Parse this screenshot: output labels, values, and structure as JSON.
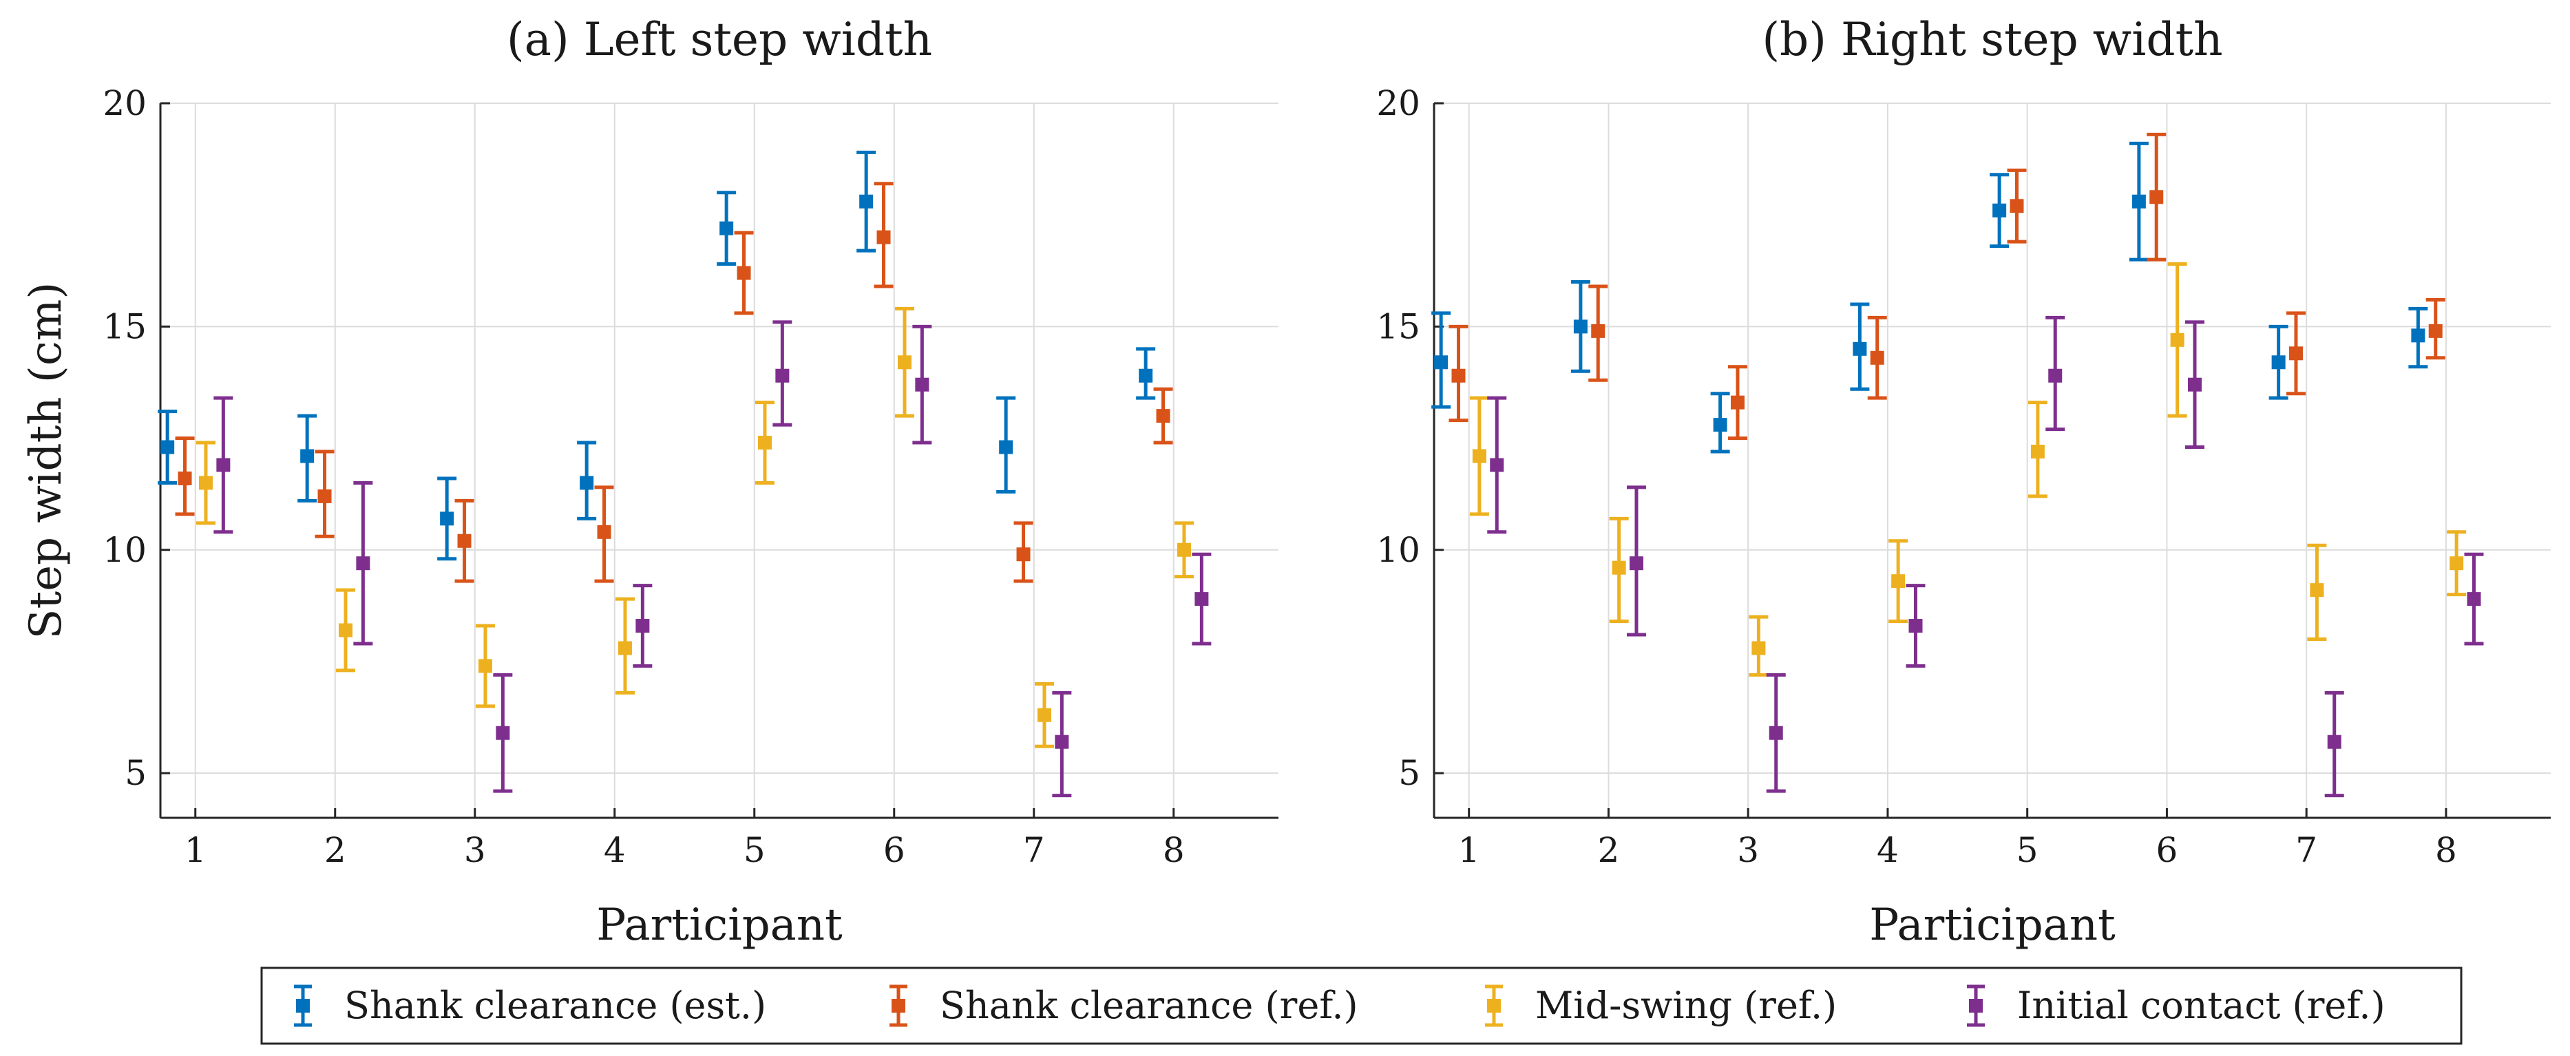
{
  "chart_data": [
    {
      "type": "errorbar",
      "title": "(a) Left step width",
      "xlabel": "Participant",
      "ylabel": "Step width (cm)",
      "xlim": [
        0.75,
        8.75
      ],
      "ylim": [
        4,
        20
      ],
      "xticks": [
        1,
        2,
        3,
        4,
        5,
        6,
        7,
        8
      ],
      "yticks": [
        5,
        10,
        15,
        20
      ],
      "grid": true,
      "series": [
        {
          "name": "Shank clearance (est.)",
          "color": "#0072BD",
          "mean": [
            12.3,
            12.1,
            10.7,
            11.5,
            17.2,
            17.8,
            12.3,
            13.9
          ],
          "low": [
            11.5,
            11.1,
            9.8,
            10.7,
            16.4,
            16.7,
            11.3,
            13.4
          ],
          "high": [
            13.1,
            13.0,
            11.6,
            12.4,
            18.0,
            18.9,
            13.4,
            14.5
          ]
        },
        {
          "name": "Shank clearance (ref.)",
          "color": "#D95319",
          "mean": [
            11.6,
            11.2,
            10.2,
            10.4,
            16.2,
            17.0,
            9.9,
            13.0
          ],
          "low": [
            10.8,
            10.3,
            9.3,
            9.3,
            15.3,
            15.9,
            9.3,
            12.4
          ],
          "high": [
            12.5,
            12.2,
            11.1,
            11.4,
            17.1,
            18.2,
            10.6,
            13.6
          ]
        },
        {
          "name": "Mid-swing (ref.)",
          "color": "#EDB120",
          "mean": [
            11.5,
            8.2,
            7.4,
            7.8,
            12.4,
            14.2,
            6.3,
            10.0
          ],
          "low": [
            10.6,
            7.3,
            6.5,
            6.8,
            11.5,
            13.0,
            5.6,
            9.4
          ],
          "high": [
            12.4,
            9.1,
            8.3,
            8.9,
            13.3,
            15.4,
            7.0,
            10.6
          ]
        },
        {
          "name": "Initial contact (ref.)",
          "color": "#7E2F8E",
          "mean": [
            11.9,
            9.7,
            5.9,
            8.3,
            13.9,
            13.7,
            5.7,
            8.9
          ],
          "low": [
            10.4,
            7.9,
            4.6,
            7.4,
            12.8,
            12.4,
            4.5,
            7.9
          ],
          "high": [
            13.4,
            11.5,
            7.2,
            9.2,
            15.1,
            15.0,
            6.8,
            9.9
          ]
        }
      ]
    },
    {
      "type": "errorbar",
      "title": "(b) Right step width",
      "xlabel": "Participant",
      "ylabel": "",
      "xlim": [
        0.75,
        8.75
      ],
      "ylim": [
        4,
        20
      ],
      "xticks": [
        1,
        2,
        3,
        4,
        5,
        6,
        7,
        8
      ],
      "yticks": [
        5,
        10,
        15,
        20
      ],
      "grid": true,
      "series": [
        {
          "name": "Shank clearance (est.)",
          "color": "#0072BD",
          "mean": [
            14.2,
            15.0,
            12.8,
            14.5,
            17.6,
            17.8,
            14.2,
            14.8
          ],
          "low": [
            13.2,
            14.0,
            12.2,
            13.6,
            16.8,
            16.5,
            13.4,
            14.1
          ],
          "high": [
            15.3,
            16.0,
            13.5,
            15.5,
            18.4,
            19.1,
            15.0,
            15.4
          ]
        },
        {
          "name": "Shank clearance (ref.)",
          "color": "#D95319",
          "mean": [
            13.9,
            14.9,
            13.3,
            14.3,
            17.7,
            17.9,
            14.4,
            14.9
          ],
          "low": [
            12.9,
            13.8,
            12.5,
            13.4,
            16.9,
            16.5,
            13.5,
            14.3
          ],
          "high": [
            15.0,
            15.9,
            14.1,
            15.2,
            18.5,
            19.3,
            15.3,
            15.6
          ]
        },
        {
          "name": "Mid-swing (ref.)",
          "color": "#EDB120",
          "mean": [
            12.1,
            9.6,
            7.8,
            9.3,
            12.2,
            14.7,
            9.1,
            9.7
          ],
          "low": [
            10.8,
            8.4,
            7.2,
            8.4,
            11.2,
            13.0,
            8.0,
            9.0
          ],
          "high": [
            13.4,
            10.7,
            8.5,
            10.2,
            13.3,
            16.4,
            10.1,
            10.4
          ]
        },
        {
          "name": "Initial contact (ref.)",
          "color": "#7E2F8E",
          "mean": [
            11.9,
            9.7,
            5.9,
            8.3,
            13.9,
            13.7,
            5.7,
            8.9
          ],
          "low": [
            10.4,
            8.1,
            4.6,
            7.4,
            12.7,
            12.3,
            4.5,
            7.9
          ],
          "high": [
            13.4,
            11.4,
            7.2,
            9.2,
            15.2,
            15.1,
            6.8,
            9.9
          ]
        }
      ]
    }
  ],
  "legend": {
    "placement": "bottom-center",
    "entries": [
      "Shank clearance (est.)",
      "Shank clearance (ref.)",
      "Mid-swing (ref.)",
      "Initial contact (ref.)"
    ]
  }
}
